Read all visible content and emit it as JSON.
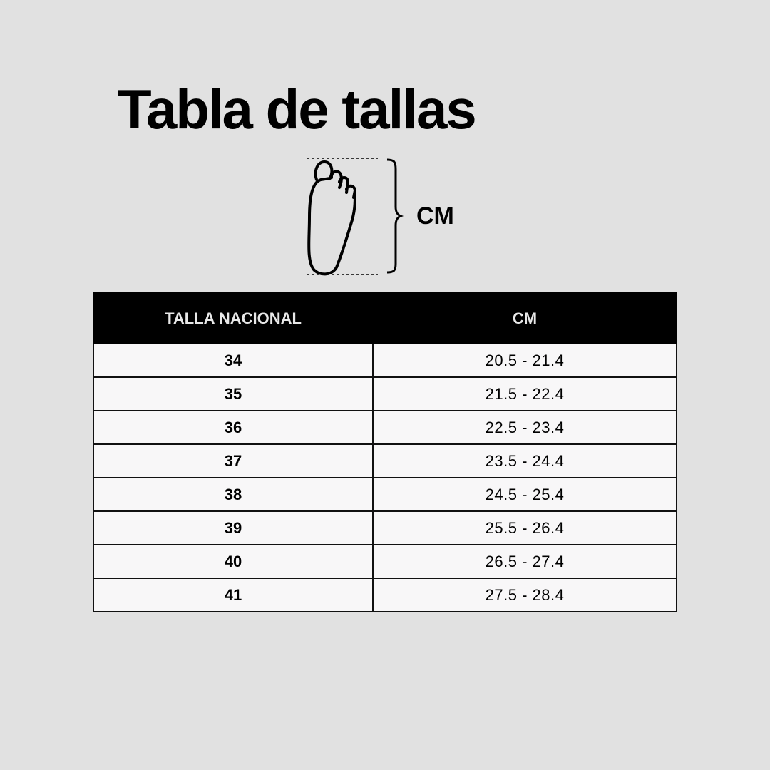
{
  "title": "Tabla de tallas",
  "diagram": {
    "icon": "foot-icon",
    "label": "CM"
  },
  "table": {
    "headers": [
      "TALLA NACIONAL",
      "CM"
    ],
    "rows": [
      {
        "size": "34",
        "cm": "20.5 - 21.4"
      },
      {
        "size": "35",
        "cm": "21.5 - 22.4"
      },
      {
        "size": "36",
        "cm": "22.5 - 23.4"
      },
      {
        "size": "37",
        "cm": "23.5 - 24.4"
      },
      {
        "size": "38",
        "cm": "24.5 - 25.4"
      },
      {
        "size": "39",
        "cm": "25.5 - 26.4"
      },
      {
        "size": "40",
        "cm": "26.5 - 27.4"
      },
      {
        "size": "41",
        "cm": "27.5 - 28.4"
      }
    ]
  },
  "colors": {
    "background": "#e1e1e1",
    "header": "#000000",
    "cell": "#f8f7f8"
  }
}
